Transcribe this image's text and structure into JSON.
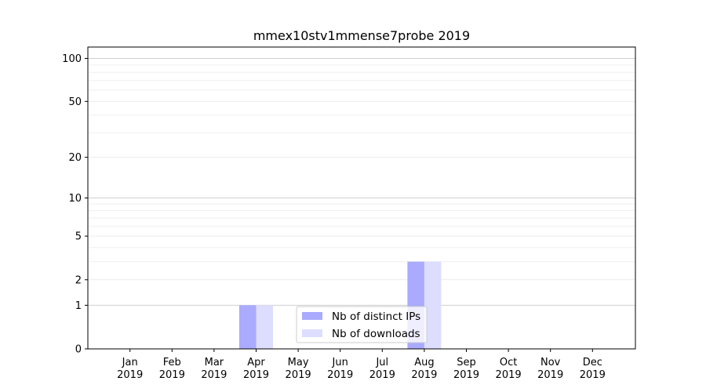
{
  "chart_data": {
    "type": "bar",
    "title": "mmex10stv1mmense7probe 2019",
    "xlabel": "",
    "ylabel": "",
    "y_scale": "symlog",
    "ylim": [
      0,
      120
    ],
    "grid": "horizontal",
    "legend_position": "bottom-center",
    "categories": [
      {
        "month": "Jan",
        "year": "2019"
      },
      {
        "month": "Feb",
        "year": "2019"
      },
      {
        "month": "Mar",
        "year": "2019"
      },
      {
        "month": "Apr",
        "year": "2019"
      },
      {
        "month": "May",
        "year": "2019"
      },
      {
        "month": "Jun",
        "year": "2019"
      },
      {
        "month": "Jul",
        "year": "2019"
      },
      {
        "month": "Aug",
        "year": "2019"
      },
      {
        "month": "Sep",
        "year": "2019"
      },
      {
        "month": "Oct",
        "year": "2019"
      },
      {
        "month": "Nov",
        "year": "2019"
      },
      {
        "month": "Dec",
        "year": "2019"
      }
    ],
    "y_ticks": [
      {
        "value": 0,
        "label": "0"
      },
      {
        "value": 1,
        "label": "1"
      },
      {
        "value": 2,
        "label": "2"
      },
      {
        "value": 5,
        "label": "5"
      },
      {
        "value": 10,
        "label": "10"
      },
      {
        "value": 20,
        "label": "20"
      },
      {
        "value": 50,
        "label": "50"
      },
      {
        "value": 100,
        "label": "100"
      }
    ],
    "series": [
      {
        "name": "Nb of distinct IPs",
        "color": "#aaaaff",
        "values": [
          0,
          0,
          0,
          1,
          0,
          0,
          0,
          3,
          0,
          0,
          0,
          0
        ]
      },
      {
        "name": "Nb of downloads",
        "color": "#ddddff",
        "values": [
          0,
          0,
          0,
          1,
          0,
          0,
          0,
          3,
          0,
          0,
          0,
          0
        ]
      }
    ]
  }
}
